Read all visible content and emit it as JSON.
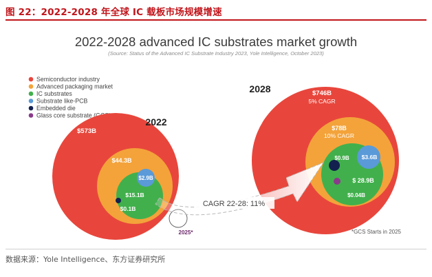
{
  "header": {
    "figure_title": "图 22：2022-2028 年全球 IC 载板市场规模增速"
  },
  "footer": {
    "source_note": "数据来源：Yole Intelligence、东方证券研究所"
  },
  "colors": {
    "semiconductor": "#e8463c",
    "advanced_packaging": "#f3a33a",
    "ic_substrates": "#41b04c",
    "substrate_like_pcb": "#5a9ad8",
    "embedded_die": "#13214f",
    "glass_core": "#8a3a8a",
    "title_red": "#c0151b"
  },
  "chart_data": {
    "type": "bubble",
    "title": "2022-2028 advanced IC substrates market growth",
    "subtitle": "(Source: Status of the Advanced IC Substrate Industry 2023, Yole Intelligence, October 2023)",
    "legend": [
      "Semiconductor industry",
      "Advanced packaging market",
      "IC substrates",
      "Substrate like-PCB",
      "Embedded die",
      "Glass core substrate (GCS)"
    ],
    "legend_position": "top-left",
    "years": [
      {
        "year": "2022",
        "semiconductor": 573,
        "semiconductor_label": "$573B",
        "advanced_packaging": 44.3,
        "advanced_packaging_label": "$44.3B",
        "ic_substrates": 15.1,
        "ic_substrates_label": "$15.1B",
        "substrate_like_pcb": 2.9,
        "substrate_like_pcb_label": "$2.9B",
        "embedded_die": 0.1,
        "embedded_die_label": "$0.1B"
      },
      {
        "year": "2028",
        "semiconductor": 746,
        "semiconductor_label": "$746B",
        "semiconductor_cagr": "5% CAGR",
        "advanced_packaging": 78,
        "advanced_packaging_label": "$78B",
        "advanced_packaging_cagr": "10% CAGR",
        "ic_substrates": 28.9,
        "ic_substrates_label": "$ 28.9B",
        "substrate_like_pcb": 3.6,
        "substrate_like_pcb_label": "$3.6B",
        "embedded_die": 0.9,
        "embedded_die_label": "$0.9B",
        "glass_core": 0.04,
        "glass_core_label": "$0.04B"
      }
    ],
    "gcs_start_label": "2025*",
    "ic_substrates_cagr": "CAGR 22-28: 11%",
    "footnote": "*GCS Starts in 2025"
  }
}
